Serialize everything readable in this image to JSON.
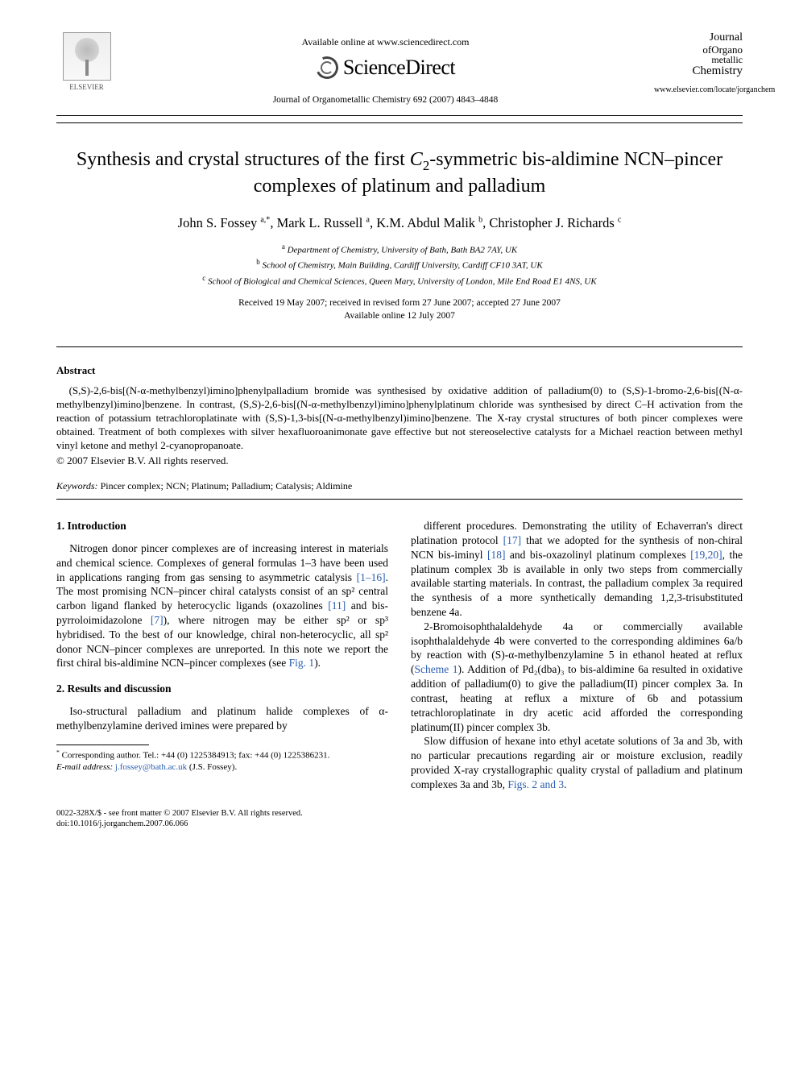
{
  "header": {
    "publisher": "ELSEVIER",
    "available_online": "Available online at www.sciencedirect.com",
    "sd_brand": "ScienceDirect",
    "journal_ref": "Journal of Organometallic Chemistry 692 (2007) 4843–4848",
    "journal_logo": {
      "l1": "Journal",
      "l2": "ofOrgano",
      "l3": "metallic",
      "l4": "Chemistry"
    },
    "journal_url": "www.elsevier.com/locate/jorganchem"
  },
  "title": {
    "pre": "Synthesis and crystal structures of the first ",
    "c2": "C",
    "sub2": "2",
    "post": "-symmetric bis-aldimine NCN–pincer complexes of platinum and palladium"
  },
  "authors_html": "John S. Fossey <sup>a,*</sup>, Mark L. Russell <sup>a</sup>, K.M. Abdul Malik <sup>b</sup>, Christopher J. Richards <sup>c</sup>",
  "affiliations": {
    "a": "Department of Chemistry, University of Bath, Bath BA2 7AY, UK",
    "b": "School of Chemistry, Main Building, Cardiff University, Cardiff CF10 3AT, UK",
    "c": "School of Biological and Chemical Sciences, Queen Mary, University of London, Mile End Road E1 4NS, UK"
  },
  "dates": {
    "received": "Received 19 May 2007; received in revised form 27 June 2007; accepted 27 June 2007",
    "online": "Available online 12 July 2007"
  },
  "abstract": {
    "heading": "Abstract",
    "body": "(S,S)-2,6-bis[(N-α-methylbenzyl)imino]phenylpalladium bromide was synthesised by oxidative addition of palladium(0) to (S,S)-1-bromo-2,6-bis[(N-α-methylbenzyl)imino]benzene. In contrast, (S,S)-2,6-bis[(N-α-methylbenzyl)imino]phenylplatinum chloride was synthesised by direct C–H activation from the reaction of potassium tetrachloroplatinate with (S,S)-1,3-bis[(N-α-methylbenzyl)imino]benzene. The X-ray crystal structures of both pincer complexes were obtained. Treatment of both complexes with silver hexafluoroanimonate gave effective but not stereoselective catalysts for a Michael reaction between methyl vinyl ketone and methyl 2-cyanopropanoate.",
    "copyright": "© 2007 Elsevier B.V. All rights reserved."
  },
  "keywords": {
    "label": "Keywords:",
    "list": "Pincer complex; NCN; Platinum; Palladium; Catalysis; Aldimine"
  },
  "sections": {
    "s1": {
      "heading": "1. Introduction",
      "p1a": "Nitrogen donor pincer complexes are of increasing interest in materials and chemical science. Complexes of general formulas 1–3 have been used in applications ranging from gas sensing to asymmetric catalysis ",
      "ref1": "[1–16]",
      "p1b": ". The most promising NCN–pincer chiral catalysts consist of an sp² central carbon ligand flanked by heterocyclic ligands (oxazolines ",
      "ref2": "[11]",
      "p1c": " and bis-pyrroloimidazolone ",
      "ref3": "[7]",
      "p1d": "), where nitrogen may be either sp² or sp³ hybridised. To the best of our knowledge, chiral non-heterocyclic, all sp² donor NCN–pincer complexes are unreported. In this note we report the first chiral bis-aldimine NCN–pincer complexes (see ",
      "fig1": "Fig. 1",
      "p1e": ")."
    },
    "s2": {
      "heading": "2. Results and discussion",
      "p1": "Iso-structural palladium and platinum halide complexes of α-methylbenzylamine derived imines were prepared by",
      "p2a": "different procedures. Demonstrating the utility of Echaverran's direct platination protocol ",
      "ref17": "[17]",
      "p2b": " that we adopted for the synthesis of non-chiral NCN bis-iminyl ",
      "ref18": "[18]",
      "p2c": " and bis-oxazolinyl platinum complexes ",
      "ref1920": "[19,20]",
      "p2d": ", the platinum complex 3b is available in only two steps from commercially available starting materials. In contrast, the palladium complex 3a required the synthesis of a more synthetically demanding 1,2,3-trisubstituted benzene 4a.",
      "p3a": "2-Bromoisophthalaldehyde 4a or commercially available isophthalaldehyde 4b were converted to the corresponding aldimines 6a/b by reaction with (S)-α-methylbenzylamine 5 in ethanol heated at reflux (",
      "scheme1": "Scheme 1",
      "p3b": "). Addition of Pd₂(dba)₃ to bis-aldimine 6a resulted in oxidative addition of palladium(0) to give the palladium(II) pincer complex 3a. In contrast, heating at reflux a mixture of 6b and potassium tetrachloroplatinate in dry acetic acid afforded the corresponding platinum(II) pincer complex 3b.",
      "p4a": "Slow diffusion of hexane into ethyl acetate solutions of 3a and 3b, with no particular precautions regarding air or moisture exclusion, readily provided X-ray crystallographic quality crystal of palladium and platinum complexes 3a and 3b, ",
      "figs23": "Figs. 2 and 3",
      "p4b": "."
    }
  },
  "footnotes": {
    "corr": "Corresponding author. Tel.: +44 (0) 1225384913; fax: +44 (0) 1225386231.",
    "email_label": "E-mail address:",
    "email": "j.fossey@bath.ac.uk",
    "email_who": "(J.S. Fossey)."
  },
  "footer": {
    "line1": "0022-328X/$ - see front matter © 2007 Elsevier B.V. All rights reserved.",
    "line2": "doi:10.1016/j.jorganchem.2007.06.066"
  },
  "colors": {
    "link": "#2a5db0",
    "text": "#000000",
    "bg": "#ffffff"
  },
  "typography": {
    "body_pt": 13.5,
    "title_pt": 24,
    "authors_pt": 16.5,
    "affil_pt": 11,
    "abstract_pt": 13,
    "keywords_pt": 12,
    "footer_pt": 10.5,
    "font_family": "Times New Roman"
  }
}
